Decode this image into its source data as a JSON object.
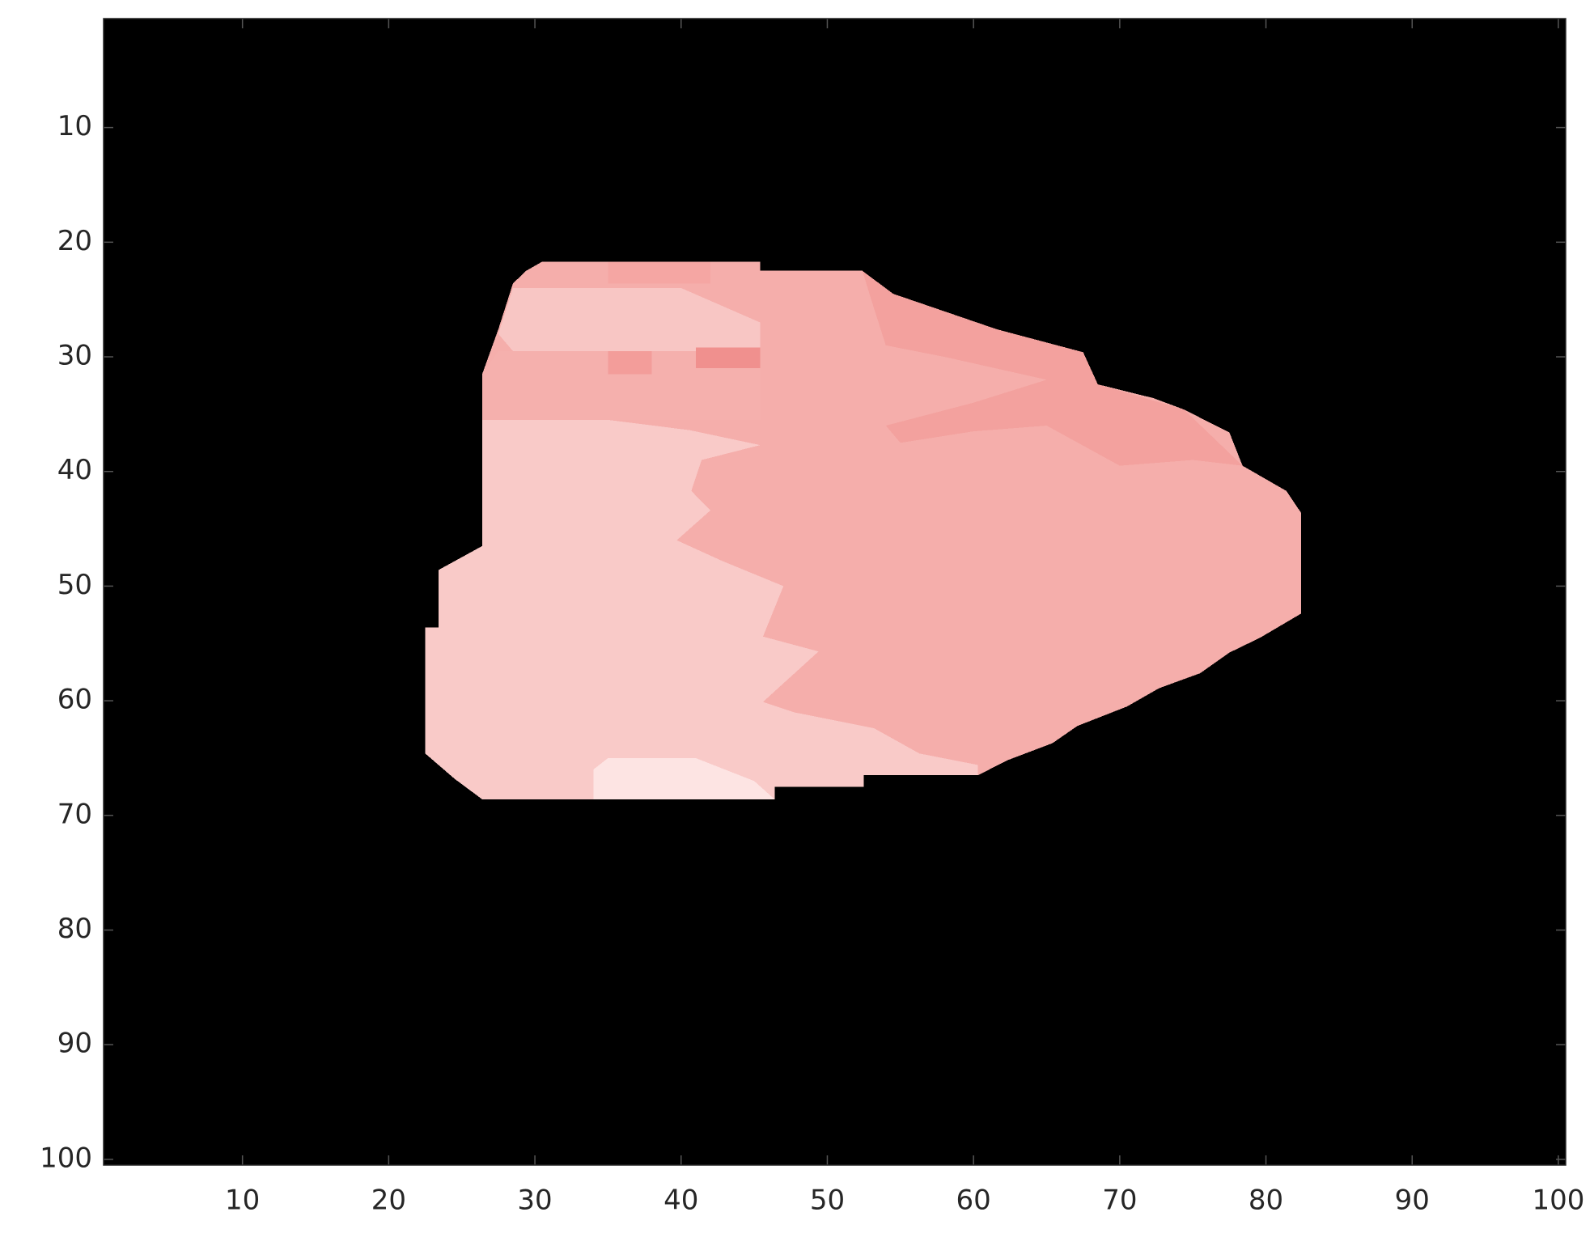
{
  "chart_data": {
    "type": "image",
    "xlim": [
      0.5,
      100.5
    ],
    "ylim": [
      0.5,
      100.5
    ],
    "y_reversed": true,
    "xticks": [
      10,
      20,
      30,
      40,
      50,
      60,
      70,
      80,
      90,
      100
    ],
    "yticks": [
      10,
      20,
      30,
      40,
      50,
      60,
      70,
      80,
      90,
      100
    ],
    "background": "#000000",
    "regions": [
      {
        "color": "#f5aeab",
        "points": [
          [
            30.5,
            21.7
          ],
          [
            45.4,
            21.7
          ],
          [
            45.4,
            22.5
          ],
          [
            52.4,
            22.5
          ],
          [
            54.5,
            24.5
          ],
          [
            57.4,
            25.8
          ],
          [
            61.6,
            27.6
          ],
          [
            64.5,
            28.6
          ],
          [
            67.5,
            29.6
          ],
          [
            68.5,
            32.4
          ],
          [
            72.3,
            33.6
          ],
          [
            74.4,
            34.6
          ],
          [
            77.5,
            36.6
          ],
          [
            78.4,
            39.5
          ],
          [
            81.4,
            41.7
          ],
          [
            82.4,
            43.6
          ],
          [
            82.4,
            52.4
          ],
          [
            79.6,
            54.5
          ],
          [
            77.5,
            55.8
          ],
          [
            75.5,
            57.6
          ],
          [
            72.7,
            58.9
          ],
          [
            70.5,
            60.5
          ],
          [
            68.5,
            61.5
          ],
          [
            67.1,
            62.2
          ],
          [
            65.4,
            63.7
          ],
          [
            62.3,
            65.2
          ],
          [
            60.3,
            66.5
          ],
          [
            52.5,
            66.5
          ],
          [
            52.5,
            67.5
          ],
          [
            46.4,
            67.5
          ],
          [
            46.4,
            68.6
          ],
          [
            26.4,
            68.6
          ],
          [
            24.5,
            66.8
          ],
          [
            22.5,
            64.6
          ],
          [
            22.5,
            53.6
          ],
          [
            23.4,
            53.6
          ],
          [
            23.4,
            48.6
          ],
          [
            26.4,
            46.5
          ],
          [
            26.4,
            31.5
          ],
          [
            27.5,
            27.6
          ],
          [
            28.5,
            23.6
          ],
          [
            29.4,
            22.5
          ]
        ]
      },
      {
        "color": "#f3a19e",
        "points": [
          [
            52.4,
            22.5
          ],
          [
            54.5,
            24.5
          ],
          [
            61.6,
            27.6
          ],
          [
            67.5,
            29.6
          ],
          [
            68.5,
            32.4
          ],
          [
            74.4,
            34.6
          ],
          [
            78.4,
            39.5
          ],
          [
            75,
            39
          ],
          [
            70,
            39.5
          ],
          [
            65,
            36
          ],
          [
            60,
            36.5
          ],
          [
            55,
            37.5
          ],
          [
            54,
            36
          ],
          [
            60,
            34
          ],
          [
            65,
            32
          ],
          [
            58,
            30
          ],
          [
            54,
            29
          ],
          [
            53,
            25
          ]
        ]
      },
      {
        "color": "#f9cac8",
        "points": [
          [
            26.4,
            35.5
          ],
          [
            35,
            35.5
          ],
          [
            40.6,
            36.4
          ],
          [
            45.4,
            37.7
          ],
          [
            41.4,
            39
          ],
          [
            40.7,
            41.7
          ],
          [
            42,
            43.4
          ],
          [
            39.7,
            46
          ],
          [
            42.8,
            47.8
          ],
          [
            47,
            50
          ],
          [
            45.6,
            54.4
          ],
          [
            49.4,
            55.7
          ],
          [
            45.6,
            60.1
          ],
          [
            47.7,
            61
          ],
          [
            53.2,
            62.4
          ],
          [
            56.3,
            64.6
          ],
          [
            60.3,
            65.6
          ],
          [
            60.3,
            66.5
          ],
          [
            52.5,
            66.5
          ],
          [
            52.5,
            67.5
          ],
          [
            46.4,
            67.5
          ],
          [
            46.4,
            68.6
          ],
          [
            26.4,
            68.6
          ],
          [
            24.5,
            66.8
          ],
          [
            22.5,
            64.6
          ],
          [
            22.5,
            53.6
          ],
          [
            23.4,
            53.6
          ],
          [
            23.4,
            48.6
          ],
          [
            26.4,
            46.5
          ]
        ]
      },
      {
        "color": "#f8c6c4",
        "points": [
          [
            28.5,
            24
          ],
          [
            40,
            24
          ],
          [
            45.4,
            27
          ],
          [
            45.4,
            29.5
          ],
          [
            28.5,
            29.5
          ],
          [
            27.5,
            28
          ]
        ]
      },
      {
        "color": "#f5b0ad",
        "points": [
          [
            26.4,
            31.5
          ],
          [
            27.5,
            29.5
          ],
          [
            45.4,
            29.5
          ],
          [
            45.4,
            35.5
          ],
          [
            26.4,
            35.5
          ]
        ]
      },
      {
        "color": "#f5a6a3",
        "points": [
          [
            35,
            21.7
          ],
          [
            42,
            21.7
          ],
          [
            42,
            23.6
          ],
          [
            35,
            23.6
          ]
        ]
      },
      {
        "color": "#f39d9a",
        "points": [
          [
            35,
            29.5
          ],
          [
            38,
            29.5
          ],
          [
            38,
            31.5
          ],
          [
            35,
            31.5
          ]
        ]
      },
      {
        "color": "#f0908e",
        "points": [
          [
            41,
            29.2
          ],
          [
            45.4,
            29.2
          ],
          [
            45.4,
            31
          ],
          [
            41,
            31
          ]
        ]
      },
      {
        "color": "#fde4e3",
        "points": [
          [
            35,
            65
          ],
          [
            41,
            65
          ],
          [
            45,
            67
          ],
          [
            46.4,
            68.6
          ],
          [
            34,
            68.6
          ],
          [
            34,
            66
          ]
        ]
      }
    ]
  }
}
